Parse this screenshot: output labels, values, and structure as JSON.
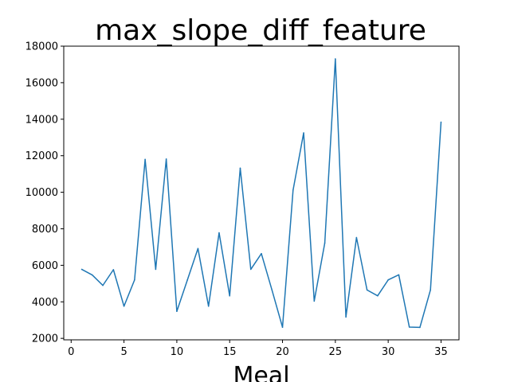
{
  "chart_data": {
    "type": "line",
    "title": "max_slope_diff_feature",
    "xlabel": "Meal",
    "ylabel": "",
    "xlim": [
      -0.7,
      36.7
    ],
    "ylim": [
      1920,
      18000
    ],
    "xticks": [
      0,
      5,
      10,
      15,
      20,
      25,
      30,
      35
    ],
    "yticks": [
      2000,
      4000,
      6000,
      8000,
      10000,
      12000,
      14000,
      16000,
      18000
    ],
    "grid": false,
    "series": [
      {
        "color": "#1f77b4",
        "x": [
          1,
          2,
          3,
          4,
          5,
          6,
          7,
          8,
          9,
          10,
          11,
          12,
          13,
          14,
          15,
          16,
          17,
          18,
          19,
          20,
          21,
          22,
          23,
          24,
          25,
          26,
          27,
          28,
          29,
          30,
          31,
          32,
          33,
          34,
          35
        ],
        "y": [
          5780,
          5470,
          4900,
          5760,
          3760,
          5200,
          11800,
          5780,
          11820,
          3480,
          5200,
          6920,
          3760,
          7780,
          4330,
          11320,
          5780,
          6640,
          4650,
          2610,
          10120,
          13250,
          4040,
          7220,
          17300,
          3170,
          7520,
          4650,
          4330,
          5200,
          5480,
          2620,
          2600,
          4650,
          13840
        ]
      }
    ]
  }
}
